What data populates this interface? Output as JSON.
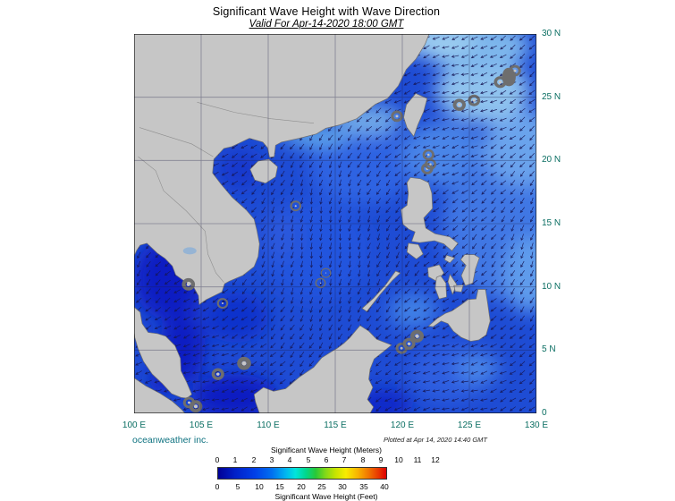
{
  "header": {
    "title": "Significant Wave Height with Wave Direction",
    "subtitle": "Valid For Apr-14-2020 18:00 GMT"
  },
  "map": {
    "lat_labels": [
      "30 N",
      "25 N",
      "20 N",
      "15 N",
      "10 N",
      "5 N",
      "0"
    ],
    "lon_labels": [
      "100 E",
      "105 E",
      "110 E",
      "115 E",
      "120 E",
      "125 E",
      "130 E"
    ]
  },
  "footer": {
    "credit": "oceanweather inc.",
    "plotted": "Plotted at Apr 14, 2020 14:40 GMT"
  },
  "colorbar": {
    "top_label": "Significant Wave Height (Meters)",
    "bottom_label": "Significant Wave Height (Feet)",
    "meters_ticks": [
      "0",
      "1",
      "2",
      "3",
      "4",
      "5",
      "6",
      "7",
      "8",
      "9",
      "10",
      "11",
      "12"
    ],
    "feet_ticks": [
      "0",
      "5",
      "10",
      "15",
      "20",
      "25",
      "30",
      "35",
      "40"
    ],
    "gradient_stops": [
      [
        "0%",
        "#000096"
      ],
      [
        "10%",
        "#0020c8"
      ],
      [
        "22%",
        "#0040e8"
      ],
      [
        "32%",
        "#0070f0"
      ],
      [
        "40%",
        "#00b4f0"
      ],
      [
        "46%",
        "#00e4dc"
      ],
      [
        "52%",
        "#00d890"
      ],
      [
        "58%",
        "#28c838"
      ],
      [
        "64%",
        "#84d818"
      ],
      [
        "70%",
        "#c8e400"
      ],
      [
        "76%",
        "#f8ec00"
      ],
      [
        "83%",
        "#f8b400"
      ],
      [
        "90%",
        "#f07000"
      ],
      [
        "96%",
        "#e83000"
      ],
      [
        "100%",
        "#dc0000"
      ]
    ]
  },
  "colors": {
    "ocean": "#1e4cd4",
    "land": "#c6c6c6",
    "axis_label": "#0a6e62",
    "credit": "#0e7280"
  }
}
